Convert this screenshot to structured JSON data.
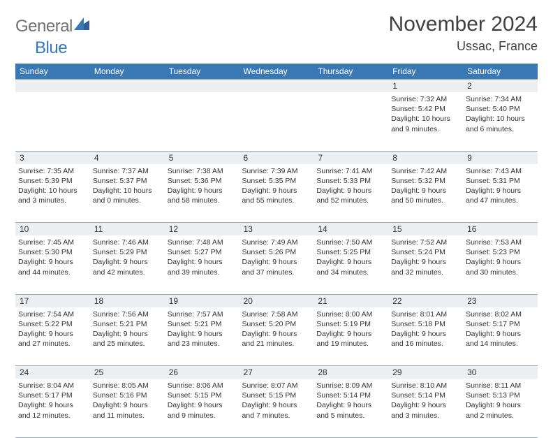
{
  "brand": {
    "part1": "General",
    "part2": "Blue"
  },
  "title": "November 2024",
  "location": "Ussac, France",
  "colors": {
    "header_bg": "#3a78b5",
    "header_fg": "#ffffff",
    "num_bg": "#eceff1",
    "rule": "#9aaab8",
    "text": "#333333",
    "title": "#404040",
    "logo_gray": "#707070",
    "logo_blue": "#3a78b5",
    "page_bg": "#ffffff"
  },
  "dayNames": [
    "Sunday",
    "Monday",
    "Tuesday",
    "Wednesday",
    "Thursday",
    "Friday",
    "Saturday"
  ],
  "weeks": [
    [
      null,
      null,
      null,
      null,
      null,
      {
        "n": "1",
        "sr": "7:32 AM",
        "ss": "5:42 PM",
        "dl": "10 hours and 9 minutes."
      },
      {
        "n": "2",
        "sr": "7:34 AM",
        "ss": "5:40 PM",
        "dl": "10 hours and 6 minutes."
      }
    ],
    [
      {
        "n": "3",
        "sr": "7:35 AM",
        "ss": "5:39 PM",
        "dl": "10 hours and 3 minutes."
      },
      {
        "n": "4",
        "sr": "7:37 AM",
        "ss": "5:37 PM",
        "dl": "10 hours and 0 minutes."
      },
      {
        "n": "5",
        "sr": "7:38 AM",
        "ss": "5:36 PM",
        "dl": "9 hours and 58 minutes."
      },
      {
        "n": "6",
        "sr": "7:39 AM",
        "ss": "5:35 PM",
        "dl": "9 hours and 55 minutes."
      },
      {
        "n": "7",
        "sr": "7:41 AM",
        "ss": "5:33 PM",
        "dl": "9 hours and 52 minutes."
      },
      {
        "n": "8",
        "sr": "7:42 AM",
        "ss": "5:32 PM",
        "dl": "9 hours and 50 minutes."
      },
      {
        "n": "9",
        "sr": "7:43 AM",
        "ss": "5:31 PM",
        "dl": "9 hours and 47 minutes."
      }
    ],
    [
      {
        "n": "10",
        "sr": "7:45 AM",
        "ss": "5:30 PM",
        "dl": "9 hours and 44 minutes."
      },
      {
        "n": "11",
        "sr": "7:46 AM",
        "ss": "5:29 PM",
        "dl": "9 hours and 42 minutes."
      },
      {
        "n": "12",
        "sr": "7:48 AM",
        "ss": "5:27 PM",
        "dl": "9 hours and 39 minutes."
      },
      {
        "n": "13",
        "sr": "7:49 AM",
        "ss": "5:26 PM",
        "dl": "9 hours and 37 minutes."
      },
      {
        "n": "14",
        "sr": "7:50 AM",
        "ss": "5:25 PM",
        "dl": "9 hours and 34 minutes."
      },
      {
        "n": "15",
        "sr": "7:52 AM",
        "ss": "5:24 PM",
        "dl": "9 hours and 32 minutes."
      },
      {
        "n": "16",
        "sr": "7:53 AM",
        "ss": "5:23 PM",
        "dl": "9 hours and 30 minutes."
      }
    ],
    [
      {
        "n": "17",
        "sr": "7:54 AM",
        "ss": "5:22 PM",
        "dl": "9 hours and 27 minutes."
      },
      {
        "n": "18",
        "sr": "7:56 AM",
        "ss": "5:21 PM",
        "dl": "9 hours and 25 minutes."
      },
      {
        "n": "19",
        "sr": "7:57 AM",
        "ss": "5:21 PM",
        "dl": "9 hours and 23 minutes."
      },
      {
        "n": "20",
        "sr": "7:58 AM",
        "ss": "5:20 PM",
        "dl": "9 hours and 21 minutes."
      },
      {
        "n": "21",
        "sr": "8:00 AM",
        "ss": "5:19 PM",
        "dl": "9 hours and 19 minutes."
      },
      {
        "n": "22",
        "sr": "8:01 AM",
        "ss": "5:18 PM",
        "dl": "9 hours and 16 minutes."
      },
      {
        "n": "23",
        "sr": "8:02 AM",
        "ss": "5:17 PM",
        "dl": "9 hours and 14 minutes."
      }
    ],
    [
      {
        "n": "24",
        "sr": "8:04 AM",
        "ss": "5:17 PM",
        "dl": "9 hours and 12 minutes."
      },
      {
        "n": "25",
        "sr": "8:05 AM",
        "ss": "5:16 PM",
        "dl": "9 hours and 11 minutes."
      },
      {
        "n": "26",
        "sr": "8:06 AM",
        "ss": "5:15 PM",
        "dl": "9 hours and 9 minutes."
      },
      {
        "n": "27",
        "sr": "8:07 AM",
        "ss": "5:15 PM",
        "dl": "9 hours and 7 minutes."
      },
      {
        "n": "28",
        "sr": "8:09 AM",
        "ss": "5:14 PM",
        "dl": "9 hours and 5 minutes."
      },
      {
        "n": "29",
        "sr": "8:10 AM",
        "ss": "5:14 PM",
        "dl": "9 hours and 3 minutes."
      },
      {
        "n": "30",
        "sr": "8:11 AM",
        "ss": "5:13 PM",
        "dl": "9 hours and 2 minutes."
      }
    ]
  ],
  "labels": {
    "sunrise": "Sunrise:",
    "sunset": "Sunset:",
    "daylight": "Daylight:"
  }
}
